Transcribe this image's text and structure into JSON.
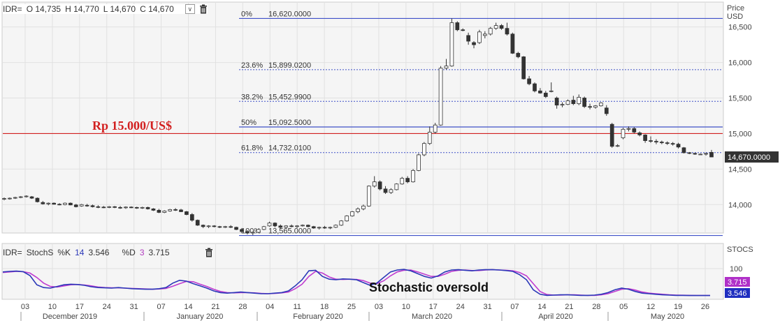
{
  "header": {
    "symbol": "IDR=",
    "open_label": "O",
    "open": "14,735",
    "high_label": "H",
    "high": "14,770",
    "low_label": "L",
    "low": "14,670",
    "close_label": "C",
    "close": "14,670",
    "dropdown_glyph": "∨"
  },
  "price_axis": {
    "title_line1": "Price",
    "title_line2": "USD",
    "last_price_label": "14,670.0000"
  },
  "stoch_header": {
    "symbol": "IDR=",
    "indicator": "StochS",
    "k_label": "%K",
    "k_period": "14",
    "k_value": "3.546",
    "d_label": "%D",
    "d_period": "3",
    "d_value": "3.715"
  },
  "stoch_axis": {
    "title": "STOCS",
    "level_label": "100",
    "d_badge": "3.715",
    "k_badge": "3.546"
  },
  "annotations": {
    "rp_line": "Rp 15.000/US$",
    "oversold": "Stochastic oversold"
  },
  "colors": {
    "fib_line": "#3f50c8",
    "rp_line": "#d21f1f",
    "candle_up": "#ffffff",
    "candle_down": "#333333",
    "k_line": "#2b38b8",
    "d_line": "#c03cd0",
    "grid": "#e1e1e1",
    "panel_bg": "#f5f5f5"
  },
  "chart_data": {
    "type": "candlestick",
    "ylim": [
      13600,
      16850
    ],
    "y_ticks": [
      14000,
      14500,
      15000,
      15500,
      16000,
      16500
    ],
    "y_tick_labels": [
      "14,000",
      "14,500",
      "15,000",
      "15,500",
      "16,000",
      "16,500"
    ],
    "last_price": 14670,
    "reference_line": {
      "value": 15000,
      "label": "Rp 15.000/US$"
    },
    "fibonacci": [
      {
        "level": "0%",
        "value": "16,620.0000",
        "y": 16620
      },
      {
        "level": "23.6%",
        "value": "15,899.0200",
        "y": 15899.02
      },
      {
        "level": "38.2%",
        "value": "15,452.9900",
        "y": 15452.99
      },
      {
        "level": "50%",
        "value": "15,092.5000",
        "y": 15092.5
      },
      {
        "level": "61.8%",
        "value": "14,732.0100",
        "y": 14732.01
      },
      {
        "level": "100%",
        "value": "13,565.0000",
        "y": 13565
      }
    ],
    "x_tick_labels": [
      "03",
      "10",
      "17",
      "24",
      "31",
      "07",
      "14",
      "21",
      "28",
      "04",
      "11",
      "18",
      "25",
      "03",
      "10",
      "17",
      "24",
      "31",
      "07",
      "14",
      "21",
      "28",
      "05",
      "12",
      "19",
      "26"
    ],
    "months": [
      "December 2019",
      "January 2020",
      "February 2020",
      "March 2020",
      "April 2020",
      "May 2020"
    ],
    "candles": [
      {
        "o": 14080,
        "h": 14100,
        "l": 14060,
        "c": 14085
      },
      {
        "o": 14085,
        "h": 14100,
        "l": 14070,
        "c": 14090
      },
      {
        "o": 14090,
        "h": 14110,
        "l": 14080,
        "c": 14100
      },
      {
        "o": 14100,
        "h": 14120,
        "l": 14090,
        "c": 14110
      },
      {
        "o": 14110,
        "h": 14130,
        "l": 14100,
        "c": 14120
      },
      {
        "o": 14110,
        "h": 14120,
        "l": 14080,
        "c": 14090
      },
      {
        "o": 14090,
        "h": 14100,
        "l": 14030,
        "c": 14040
      },
      {
        "o": 14030,
        "h": 14050,
        "l": 14000,
        "c": 14010
      },
      {
        "o": 14010,
        "h": 14030,
        "l": 13990,
        "c": 14020
      },
      {
        "o": 14020,
        "h": 14030,
        "l": 14000,
        "c": 14005
      },
      {
        "o": 14005,
        "h": 14020,
        "l": 13990,
        "c": 14000
      },
      {
        "o": 14000,
        "h": 14030,
        "l": 13990,
        "c": 14020
      },
      {
        "o": 14020,
        "h": 14030,
        "l": 13990,
        "c": 13995
      },
      {
        "o": 13995,
        "h": 14010,
        "l": 13960,
        "c": 13970
      },
      {
        "o": 13980,
        "h": 14010,
        "l": 13970,
        "c": 14000
      },
      {
        "o": 13990,
        "h": 14010,
        "l": 13970,
        "c": 13985
      },
      {
        "o": 13985,
        "h": 14000,
        "l": 13960,
        "c": 13970
      },
      {
        "o": 13970,
        "h": 13990,
        "l": 13950,
        "c": 13965
      },
      {
        "o": 13965,
        "h": 13980,
        "l": 13950,
        "c": 13960
      },
      {
        "o": 13960,
        "h": 13980,
        "l": 13950,
        "c": 13970
      },
      {
        "o": 13970,
        "h": 13980,
        "l": 13950,
        "c": 13960
      },
      {
        "o": 13960,
        "h": 13980,
        "l": 13940,
        "c": 13955
      },
      {
        "o": 13955,
        "h": 13975,
        "l": 13940,
        "c": 13965
      },
      {
        "o": 13965,
        "h": 13975,
        "l": 13950,
        "c": 13960
      },
      {
        "o": 13960,
        "h": 13970,
        "l": 13940,
        "c": 13950
      },
      {
        "o": 13950,
        "h": 13970,
        "l": 13940,
        "c": 13960
      },
      {
        "o": 13960,
        "h": 13970,
        "l": 13930,
        "c": 13940
      },
      {
        "o": 13940,
        "h": 13950,
        "l": 13910,
        "c": 13920
      },
      {
        "o": 13920,
        "h": 13940,
        "l": 13880,
        "c": 13890
      },
      {
        "o": 13890,
        "h": 13920,
        "l": 13880,
        "c": 13910
      },
      {
        "o": 13910,
        "h": 13940,
        "l": 13900,
        "c": 13930
      },
      {
        "o": 13930,
        "h": 13950,
        "l": 13910,
        "c": 13920
      },
      {
        "o": 13925,
        "h": 13940,
        "l": 13895,
        "c": 13900
      },
      {
        "o": 13900,
        "h": 13910,
        "l": 13850,
        "c": 13860
      },
      {
        "o": 13860,
        "h": 13880,
        "l": 13760,
        "c": 13780
      },
      {
        "o": 13780,
        "h": 13790,
        "l": 13700,
        "c": 13710
      },
      {
        "o": 13710,
        "h": 13720,
        "l": 13670,
        "c": 13690
      },
      {
        "o": 13690,
        "h": 13710,
        "l": 13670,
        "c": 13700
      },
      {
        "o": 13700,
        "h": 13710,
        "l": 13680,
        "c": 13690
      },
      {
        "o": 13690,
        "h": 13700,
        "l": 13670,
        "c": 13680
      },
      {
        "o": 13680,
        "h": 13700,
        "l": 13670,
        "c": 13690
      },
      {
        "o": 13690,
        "h": 13710,
        "l": 13670,
        "c": 13680
      },
      {
        "o": 13680,
        "h": 13690,
        "l": 13640,
        "c": 13650
      },
      {
        "o": 13650,
        "h": 13670,
        "l": 13600,
        "c": 13620
      },
      {
        "o": 13620,
        "h": 13640,
        "l": 13580,
        "c": 13600
      },
      {
        "o": 13600,
        "h": 13620,
        "l": 13570,
        "c": 13610
      },
      {
        "o": 13610,
        "h": 13660,
        "l": 13600,
        "c": 13650
      },
      {
        "o": 13650,
        "h": 13700,
        "l": 13640,
        "c": 13690
      },
      {
        "o": 13700,
        "h": 13760,
        "l": 13690,
        "c": 13740
      },
      {
        "o": 13740,
        "h": 13750,
        "l": 13680,
        "c": 13700
      },
      {
        "o": 13700,
        "h": 13720,
        "l": 13660,
        "c": 13680
      },
      {
        "o": 13680,
        "h": 13710,
        "l": 13660,
        "c": 13700
      },
      {
        "o": 13700,
        "h": 13720,
        "l": 13680,
        "c": 13690
      },
      {
        "o": 13690,
        "h": 13710,
        "l": 13670,
        "c": 13700
      },
      {
        "o": 13700,
        "h": 13720,
        "l": 13690,
        "c": 13710
      },
      {
        "o": 13710,
        "h": 13720,
        "l": 13680,
        "c": 13690
      },
      {
        "o": 13690,
        "h": 13700,
        "l": 13660,
        "c": 13670
      },
      {
        "o": 13670,
        "h": 13690,
        "l": 13650,
        "c": 13680
      },
      {
        "o": 13680,
        "h": 13700,
        "l": 13660,
        "c": 13670
      },
      {
        "o": 13670,
        "h": 13690,
        "l": 13655,
        "c": 13680
      },
      {
        "o": 13680,
        "h": 13720,
        "l": 13670,
        "c": 13710
      },
      {
        "o": 13710,
        "h": 13780,
        "l": 13700,
        "c": 13770
      },
      {
        "o": 13770,
        "h": 13850,
        "l": 13760,
        "c": 13840
      },
      {
        "o": 13840,
        "h": 13910,
        "l": 13830,
        "c": 13900
      },
      {
        "o": 13900,
        "h": 13960,
        "l": 13880,
        "c": 13940
      },
      {
        "o": 13940,
        "h": 14000,
        "l": 13920,
        "c": 13980
      },
      {
        "o": 13980,
        "h": 14270,
        "l": 13970,
        "c": 14260
      },
      {
        "o": 14260,
        "h": 14400,
        "l": 14240,
        "c": 14320
      },
      {
        "o": 14320,
        "h": 14340,
        "l": 14200,
        "c": 14220
      },
      {
        "o": 14220,
        "h": 14260,
        "l": 14150,
        "c": 14170
      },
      {
        "o": 14170,
        "h": 14230,
        "l": 14150,
        "c": 14210
      },
      {
        "o": 14210,
        "h": 14300,
        "l": 14200,
        "c": 14290
      },
      {
        "o": 14290,
        "h": 14390,
        "l": 14280,
        "c": 14370
      },
      {
        "o": 14370,
        "h": 14400,
        "l": 14300,
        "c": 14320
      },
      {
        "o": 14320,
        "h": 14500,
        "l": 14310,
        "c": 14480
      },
      {
        "o": 14480,
        "h": 14720,
        "l": 14470,
        "c": 14700
      },
      {
        "o": 14700,
        "h": 14880,
        "l": 14680,
        "c": 14860
      },
      {
        "o": 14860,
        "h": 15100,
        "l": 14840,
        "c": 15020
      },
      {
        "o": 15020,
        "h": 15150,
        "l": 15000,
        "c": 15120
      },
      {
        "o": 15120,
        "h": 15950,
        "l": 15110,
        "c": 15920
      },
      {
        "o": 15920,
        "h": 16050,
        "l": 15900,
        "c": 15950
      },
      {
        "o": 15950,
        "h": 16620,
        "l": 15940,
        "c": 16560
      },
      {
        "o": 16560,
        "h": 16580,
        "l": 16440,
        "c": 16460
      },
      {
        "o": 16460,
        "h": 16480,
        "l": 16440,
        "c": 16450
      },
      {
        "o": 16380,
        "h": 16420,
        "l": 16250,
        "c": 16300
      },
      {
        "o": 16280,
        "h": 16300,
        "l": 16200,
        "c": 16250
      },
      {
        "o": 16280,
        "h": 16460,
        "l": 16260,
        "c": 16430
      },
      {
        "o": 16380,
        "h": 16440,
        "l": 16340,
        "c": 16400
      },
      {
        "o": 16400,
        "h": 16500,
        "l": 16380,
        "c": 16480
      },
      {
        "o": 16480,
        "h": 16560,
        "l": 16460,
        "c": 16520
      },
      {
        "o": 16520,
        "h": 16540,
        "l": 16460,
        "c": 16480
      },
      {
        "o": 16480,
        "h": 16560,
        "l": 16380,
        "c": 16400
      },
      {
        "o": 16400,
        "h": 16420,
        "l": 16120,
        "c": 16130
      },
      {
        "o": 16130,
        "h": 16150,
        "l": 16060,
        "c": 16080
      },
      {
        "o": 16080,
        "h": 16090,
        "l": 15760,
        "c": 15770
      },
      {
        "o": 15770,
        "h": 15810,
        "l": 15680,
        "c": 15700
      },
      {
        "o": 15700,
        "h": 15720,
        "l": 15580,
        "c": 15600
      },
      {
        "o": 15600,
        "h": 15640,
        "l": 15560,
        "c": 15570
      },
      {
        "o": 15570,
        "h": 15600,
        "l": 15500,
        "c": 15520
      },
      {
        "o": 15600,
        "h": 15720,
        "l": 15580,
        "c": 15600
      },
      {
        "o": 15500,
        "h": 15520,
        "l": 15350,
        "c": 15400
      },
      {
        "o": 15400,
        "h": 15440,
        "l": 15370,
        "c": 15410
      },
      {
        "o": 15410,
        "h": 15480,
        "l": 15400,
        "c": 15460
      },
      {
        "o": 15470,
        "h": 15530,
        "l": 15400,
        "c": 15420
      },
      {
        "o": 15420,
        "h": 15550,
        "l": 15400,
        "c": 15510
      },
      {
        "o": 15500,
        "h": 15520,
        "l": 15360,
        "c": 15380
      },
      {
        "o": 15380,
        "h": 15420,
        "l": 15340,
        "c": 15370
      },
      {
        "o": 15370,
        "h": 15400,
        "l": 15350,
        "c": 15390
      },
      {
        "o": 15390,
        "h": 15440,
        "l": 15380,
        "c": 15430
      },
      {
        "o": 15360,
        "h": 15400,
        "l": 15250,
        "c": 15280
      },
      {
        "o": 15130,
        "h": 15150,
        "l": 14800,
        "c": 14820
      },
      {
        "o": 14820,
        "h": 14850,
        "l": 14810,
        "c": 14830
      },
      {
        "o": 14940,
        "h": 15080,
        "l": 14920,
        "c": 15060
      },
      {
        "o": 15060,
        "h": 15100,
        "l": 15030,
        "c": 15070
      },
      {
        "o": 15070,
        "h": 15090,
        "l": 15000,
        "c": 15020
      },
      {
        "o": 15010,
        "h": 15030,
        "l": 14960,
        "c": 14980
      },
      {
        "o": 14980,
        "h": 14990,
        "l": 14870,
        "c": 14900
      },
      {
        "o": 14900,
        "h": 14960,
        "l": 14870,
        "c": 14890
      },
      {
        "o": 14890,
        "h": 14920,
        "l": 14850,
        "c": 14880
      },
      {
        "o": 14880,
        "h": 14900,
        "l": 14850,
        "c": 14870
      },
      {
        "o": 14870,
        "h": 14890,
        "l": 14840,
        "c": 14860
      },
      {
        "o": 14860,
        "h": 14880,
        "l": 14830,
        "c": 14850
      },
      {
        "o": 14850,
        "h": 14870,
        "l": 14790,
        "c": 14810
      },
      {
        "o": 14800,
        "h": 14810,
        "l": 14720,
        "c": 14730
      },
      {
        "o": 14730,
        "h": 14740,
        "l": 14710,
        "c": 14720
      },
      {
        "o": 14720,
        "h": 14730,
        "l": 14700,
        "c": 14710
      },
      {
        "o": 14710,
        "h": 14720,
        "l": 14700,
        "c": 14710
      },
      {
        "o": 14710,
        "h": 14730,
        "l": 14690,
        "c": 14720
      },
      {
        "o": 14735,
        "h": 14770,
        "l": 14670,
        "c": 14670
      }
    ],
    "stochastic": {
      "ylim": [
        0,
        100
      ],
      "k_name": "%K",
      "d_name": "%D",
      "k": [
        88,
        90,
        91,
        89,
        75,
        42,
        32,
        30,
        36,
        42,
        44,
        43,
        40,
        35,
        32,
        31,
        30,
        32,
        30,
        28,
        27,
        26,
        26,
        28,
        32,
        48,
        58,
        55,
        46,
        38,
        30,
        20,
        14,
        12,
        14,
        16,
        14,
        12,
        10,
        10,
        12,
        14,
        20,
        38,
        60,
        92,
        94,
        72,
        62,
        60,
        63,
        62,
        60,
        50,
        40,
        48,
        68,
        88,
        95,
        97,
        92,
        82,
        72,
        66,
        74,
        88,
        95,
        96,
        94,
        92,
        95,
        96,
        96,
        95,
        93,
        90,
        78,
        60,
        24,
        8,
        4,
        5,
        6,
        6,
        5,
        4,
        4,
        5,
        8,
        14,
        24,
        30,
        26,
        18,
        12,
        10,
        8,
        6,
        5,
        4,
        4,
        3.5,
        3.5,
        3.5,
        3.5
      ],
      "d": [
        86,
        88,
        90,
        89,
        84,
        68,
        48,
        36,
        34,
        38,
        42,
        43,
        41,
        38,
        34,
        32,
        31,
        31,
        30,
        29,
        28,
        27,
        26,
        27,
        29,
        37,
        46,
        54,
        53,
        44,
        36,
        26,
        18,
        14,
        13,
        14,
        14,
        13,
        11,
        10,
        11,
        13,
        16,
        28,
        44,
        72,
        90,
        84,
        70,
        62,
        61,
        62,
        61,
        57,
        48,
        46,
        56,
        74,
        88,
        94,
        95,
        88,
        80,
        72,
        72,
        80,
        90,
        94,
        95,
        93,
        93,
        95,
        96,
        95,
        94,
        92,
        86,
        74,
        46,
        18,
        7,
        5,
        5,
        6,
        6,
        5,
        4,
        4,
        6,
        10,
        18,
        26,
        28,
        23,
        16,
        12,
        10,
        8,
        6,
        5,
        4.5,
        4,
        3.7,
        3.7,
        3.715
      ]
    }
  }
}
